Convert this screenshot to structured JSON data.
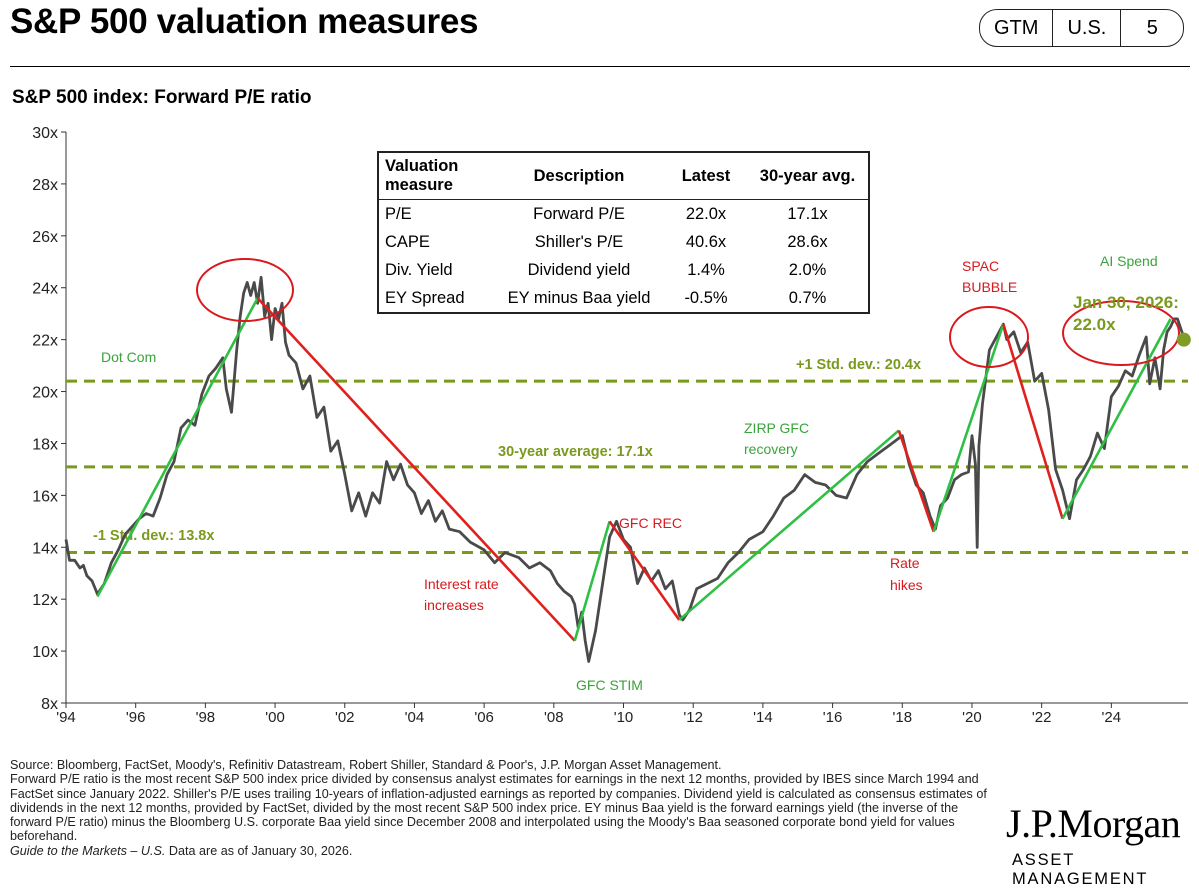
{
  "header": {
    "title": "S&P 500 valuation measures",
    "badge": [
      "GTM",
      "U.S.",
      "5"
    ]
  },
  "chart_data": {
    "type": "line",
    "title": "S&P 500 index: Forward P/E ratio",
    "x_ticks": [
      "'94",
      "'96",
      "'98",
      "'00",
      "'02",
      "'04",
      "'06",
      "'08",
      "'10",
      "'12",
      "'14",
      "'16",
      "'18",
      "'20",
      "'22",
      "'24"
    ],
    "y_ticks": [
      "8x",
      "10x",
      "12x",
      "14x",
      "16x",
      "18x",
      "20x",
      "22x",
      "24x",
      "26x",
      "28x",
      "30x"
    ],
    "xlim": [
      1994,
      2026.2
    ],
    "ylim": [
      8,
      30
    ],
    "grid": false,
    "series": [
      {
        "x": [
          1994.0,
          1994.1,
          1994.25,
          1994.4,
          1994.5,
          1994.6,
          1994.75,
          1994.9,
          1995.1,
          1995.3,
          1995.5,
          1995.7,
          1995.9,
          1996.1,
          1996.3,
          1996.5,
          1996.7,
          1996.9,
          1997.1,
          1997.3,
          1997.5,
          1997.7,
          1997.9,
          1998.1,
          1998.3,
          1998.5,
          1998.6,
          1998.75,
          1998.9,
          1999.0,
          1999.1,
          1999.2,
          1999.3,
          1999.4,
          1999.5,
          1999.6,
          1999.7,
          1999.8,
          1999.9,
          2000.0,
          2000.1,
          2000.2,
          2000.3,
          2000.4,
          2000.6,
          2000.8,
          2001.0,
          2001.2,
          2001.4,
          2001.6,
          2001.8,
          2002.0,
          2002.2,
          2002.4,
          2002.6,
          2002.8,
          2003.0,
          2003.2,
          2003.4,
          2003.6,
          2003.8,
          2004.0,
          2004.2,
          2004.4,
          2004.6,
          2004.8,
          2005.0,
          2005.3,
          2005.6,
          2006.0,
          2006.3,
          2006.6,
          2007.0,
          2007.3,
          2007.6,
          2007.9,
          2008.1,
          2008.3,
          2008.5,
          2008.6,
          2008.7,
          2008.8,
          2008.9,
          2009.0,
          2009.2,
          2009.4,
          2009.6,
          2009.8,
          2010.0,
          2010.2,
          2010.4,
          2010.6,
          2010.8,
          2011.0,
          2011.2,
          2011.4,
          2011.6,
          2011.7,
          2011.9,
          2012.1,
          2012.4,
          2012.7,
          2013.0,
          2013.3,
          2013.6,
          2014.0,
          2014.3,
          2014.6,
          2014.9,
          2015.2,
          2015.5,
          2015.8,
          2016.1,
          2016.4,
          2016.7,
          2017.0,
          2017.3,
          2017.6,
          2017.9,
          2018.0,
          2018.2,
          2018.4,
          2018.6,
          2018.8,
          2018.95,
          2019.1,
          2019.3,
          2019.5,
          2019.7,
          2019.9,
          2020.0,
          2020.1,
          2020.15,
          2020.2,
          2020.3,
          2020.5,
          2020.7,
          2020.9,
          2021.0,
          2021.2,
          2021.4,
          2021.6,
          2021.8,
          2022.0,
          2022.2,
          2022.4,
          2022.6,
          2022.8,
          2023.0,
          2023.2,
          2023.4,
          2023.6,
          2023.8,
          2024.0,
          2024.2,
          2024.4,
          2024.6,
          2024.8,
          2025.0,
          2025.1,
          2025.25,
          2025.4,
          2025.5,
          2025.6,
          2025.7,
          2025.8,
          2025.9,
          2026.0,
          2026.1
        ],
        "y": [
          14.3,
          13.5,
          13.5,
          13.2,
          13.3,
          12.9,
          12.7,
          12.2,
          12.6,
          13.4,
          13.9,
          14.5,
          14.8,
          15.1,
          15.3,
          15.2,
          15.9,
          16.8,
          17.3,
          18.6,
          18.9,
          18.7,
          19.9,
          20.6,
          20.9,
          21.3,
          20.1,
          19.2,
          21.6,
          22.9,
          23.8,
          24.2,
          23.7,
          24.2,
          23.4,
          24.4,
          22.9,
          23.4,
          22.0,
          23.2,
          22.8,
          23.4,
          21.9,
          21.4,
          21.1,
          20.1,
          20.6,
          19.0,
          19.4,
          17.7,
          18.1,
          16.8,
          15.4,
          16.1,
          15.2,
          16.1,
          15.7,
          17.3,
          16.6,
          17.2,
          16.4,
          16.1,
          15.3,
          15.8,
          15.0,
          15.4,
          14.7,
          14.6,
          14.2,
          13.9,
          13.4,
          13.8,
          13.6,
          13.2,
          13.4,
          13.1,
          12.6,
          12.3,
          12.1,
          11.8,
          10.9,
          11.5,
          10.4,
          9.6,
          10.8,
          12.6,
          14.4,
          15.0,
          14.3,
          14.0,
          12.6,
          13.2,
          12.7,
          13.1,
          12.4,
          12.7,
          11.4,
          11.2,
          11.6,
          12.4,
          12.6,
          12.8,
          13.4,
          13.8,
          14.3,
          14.6,
          15.2,
          15.9,
          16.2,
          16.8,
          16.5,
          16.4,
          16.0,
          15.9,
          16.8,
          17.3,
          17.6,
          17.9,
          18.2,
          18.3,
          17.2,
          16.4,
          16.1,
          15.2,
          14.7,
          15.6,
          15.9,
          16.6,
          16.8,
          16.9,
          18.3,
          17.2,
          14.0,
          17.9,
          19.5,
          21.6,
          22.1,
          22.6,
          22.0,
          22.3,
          21.5,
          21.9,
          20.4,
          20.7,
          19.3,
          17.0,
          16.2,
          15.1,
          16.6,
          17.0,
          17.5,
          18.4,
          17.8,
          19.8,
          20.2,
          20.8,
          20.6,
          21.4,
          22.1,
          20.3,
          21.3,
          20.1,
          21.6,
          22.3,
          22.5,
          22.8,
          22.8,
          22.4,
          22.0
        ]
      }
    ],
    "reference_lines": [
      {
        "value": 20.4,
        "label": "+1 Std. dev.: 20.4x"
      },
      {
        "value": 17.1,
        "label": "30-year average: 17.1x"
      },
      {
        "value": 13.8,
        "label": "-1 Std. dev.: 13.8x"
      }
    ],
    "trend_segments": [
      {
        "x": [
          1994.9,
          1999.5
        ],
        "y": [
          12.1,
          23.6
        ],
        "phase": "up"
      },
      {
        "x": [
          1999.5,
          2008.6
        ],
        "y": [
          23.6,
          10.4
        ],
        "phase": "down"
      },
      {
        "x": [
          2008.6,
          2009.6
        ],
        "y": [
          10.4,
          15.0
        ],
        "phase": "up"
      },
      {
        "x": [
          2009.6,
          2011.6
        ],
        "y": [
          15.0,
          11.2
        ],
        "phase": "down"
      },
      {
        "x": [
          2011.6,
          2017.9
        ],
        "y": [
          11.2,
          18.5
        ],
        "phase": "up"
      },
      {
        "x": [
          2017.9,
          2018.9
        ],
        "y": [
          18.5,
          14.6
        ],
        "phase": "down"
      },
      {
        "x": [
          2018.9,
          2020.9
        ],
        "y": [
          14.6,
          22.6
        ],
        "phase": "up"
      },
      {
        "x": [
          2020.9,
          2022.6
        ],
        "y": [
          22.6,
          15.1
        ],
        "phase": "down"
      },
      {
        "x": [
          2022.6,
          2025.7
        ],
        "y": [
          15.1,
          22.8
        ],
        "phase": "up"
      }
    ],
    "annotations": [
      {
        "text": "Dot Com",
        "color": "green"
      },
      {
        "text": "Interest rate increases",
        "color": "red"
      },
      {
        "text": "GFC STIM",
        "color": "green"
      },
      {
        "text": "GFC REC",
        "color": "red"
      },
      {
        "text": "ZIRP GFC recovery",
        "color": "green"
      },
      {
        "text": "Rate hikes",
        "color": "red"
      },
      {
        "text": "SPAC BUBBLE",
        "color": "red"
      },
      {
        "text": "AI Spend",
        "color": "green"
      }
    ],
    "latest_point": {
      "x": 2026.08,
      "y": 22.0,
      "label": "Jan 30, 2026: 22.0x"
    },
    "colors": {
      "line": "#4a4a4a",
      "up": "#2fbf44",
      "down": "#e0201c",
      "reference": "#7a9a1e",
      "circle": "#d9191e",
      "green_text": "#3aa33a",
      "red_text": "#d9191e",
      "olive_text": "#7a9a1e",
      "marker": "#7f9c24"
    }
  },
  "valuation_table": {
    "headers": [
      "Valuation measure",
      "Description",
      "Latest",
      "30-year avg."
    ],
    "rows": [
      [
        "P/E",
        "Forward P/E",
        "22.0x",
        "17.1x"
      ],
      [
        "CAPE",
        "Shiller's P/E",
        "40.6x",
        "28.6x"
      ],
      [
        "Div. Yield",
        "Dividend yield",
        "1.4%",
        "2.0%"
      ],
      [
        "EY Spread",
        "EY minus Baa yield",
        "-0.5%",
        "0.7%"
      ]
    ]
  },
  "footer": {
    "source": "Source: Bloomberg, FactSet, Moody's, Refinitiv Datastream, Robert Shiller, Standard & Poor's, J.P. Morgan Asset Management.",
    "notes": "Forward P/E ratio is the most recent S&P 500 index price divided by consensus analyst estimates for earnings in the next 12 months, provided by IBES since March 1994 and FactSet since January 2022. Shiller's P/E uses trailing 10-years of inflation-adjusted earnings as reported by companies. Dividend yield is calculated as consensus estimates of dividends in the next 12 months, provided by FactSet, divided by the most recent S&P 500 index price. EY minus Baa yield is the forward earnings yield (the inverse of the forward P/E ratio) minus the Bloomberg U.S. corporate Baa yield since December 2008 and interpolated using the Moody's Baa seasoned corporate bond yield for values beforehand.",
    "guide": "Guide to the Markets – U.S.",
    "asof": " Data are as of January 30, 2026.",
    "logo_line1": "J.P.Morgan",
    "logo_line2": "ASSET MANAGEMENT"
  }
}
